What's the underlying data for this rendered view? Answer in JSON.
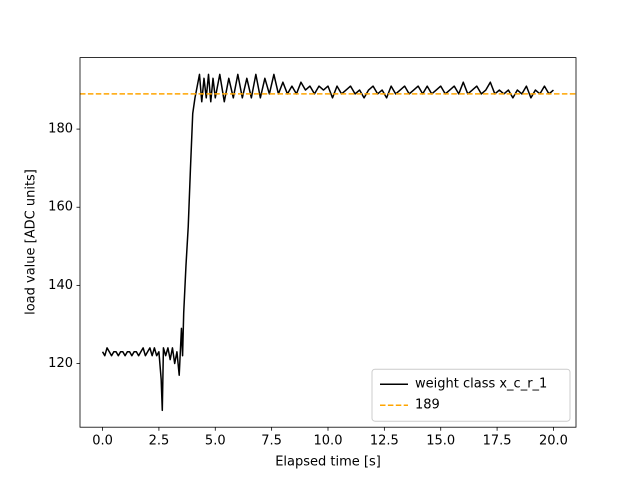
{
  "chart_data": {
    "type": "line",
    "xlabel": "Elapsed time [s]",
    "ylabel": "load value [ADC units]",
    "x": [
      0.0,
      0.1,
      0.2,
      0.3,
      0.4,
      0.5,
      0.6,
      0.7,
      0.8,
      0.9,
      1.0,
      1.1,
      1.2,
      1.3,
      1.4,
      1.5,
      1.6,
      1.7,
      1.8,
      1.9,
      2.0,
      2.1,
      2.2,
      2.3,
      2.4,
      2.5,
      2.6,
      2.65,
      2.7,
      2.8,
      2.9,
      3.0,
      3.1,
      3.2,
      3.3,
      3.4,
      3.5,
      3.55,
      3.6,
      3.7,
      3.8,
      3.9,
      4.0,
      4.1,
      4.2,
      4.3,
      4.4,
      4.5,
      4.6,
      4.7,
      4.8,
      4.9,
      5.0,
      5.2,
      5.4,
      5.6,
      5.8,
      6.0,
      6.2,
      6.4,
      6.6,
      6.8,
      7.0,
      7.2,
      7.4,
      7.6,
      7.8,
      8.0,
      8.2,
      8.4,
      8.6,
      8.8,
      9.0,
      9.2,
      9.4,
      9.6,
      9.8,
      10.0,
      10.2,
      10.4,
      10.6,
      10.8,
      11.0,
      11.2,
      11.4,
      11.6,
      11.8,
      12.0,
      12.2,
      12.4,
      12.6,
      12.8,
      13.0,
      13.2,
      13.4,
      13.6,
      13.8,
      14.0,
      14.2,
      14.4,
      14.6,
      14.8,
      15.0,
      15.2,
      15.4,
      15.6,
      15.8,
      16.0,
      16.2,
      16.4,
      16.6,
      16.8,
      17.0,
      17.2,
      17.4,
      17.6,
      17.8,
      18.0,
      18.2,
      18.4,
      18.6,
      18.8,
      19.0,
      19.2,
      19.4,
      19.6,
      19.8,
      20.0
    ],
    "series": [
      {
        "name": "weight class x_c_r_1",
        "color": "#000000",
        "values": [
          123,
          122,
          124,
          123,
          122,
          123,
          123,
          122,
          123,
          123,
          122,
          123,
          123,
          122,
          123,
          123,
          122,
          123,
          124,
          122,
          123,
          124,
          122,
          124,
          122,
          123,
          116,
          108,
          124,
          122,
          124,
          121,
          124,
          120,
          123,
          117,
          129,
          122,
          133,
          145,
          155,
          170,
          184,
          188,
          191,
          194,
          187,
          193,
          188,
          194,
          187,
          193,
          188,
          194,
          187,
          193,
          188,
          194,
          188,
          193,
          188,
          194,
          188,
          193,
          189,
          194,
          189,
          192,
          189,
          191,
          189,
          192,
          190,
          191,
          189,
          191,
          190,
          191,
          188,
          191,
          189,
          190,
          191,
          189,
          190,
          188,
          190,
          191,
          189,
          190,
          188,
          191,
          189,
          190,
          191,
          189,
          190,
          191,
          189,
          191,
          189,
          190,
          191,
          189,
          190,
          191,
          189,
          192,
          189,
          190,
          191,
          189,
          190,
          192,
          189,
          190,
          189,
          190,
          188,
          190,
          189,
          191,
          188,
          190,
          189,
          191,
          189,
          190
        ]
      }
    ],
    "hlines": [
      {
        "name": "189",
        "value": 189,
        "color": "#ffa500"
      }
    ],
    "xlim": [
      -1,
      21
    ],
    "ylim": [
      103.7,
      198.3
    ],
    "xticks": [
      {
        "value": 0,
        "label": "0.0"
      },
      2.5,
      {
        "value": 5,
        "label": "5.0"
      },
      7.5,
      {
        "value": 10,
        "label": "10.0"
      },
      12.5,
      {
        "value": 15,
        "label": "15.0"
      },
      17.5,
      {
        "value": 20,
        "label": "20.0"
      }
    ],
    "yticks": [
      120,
      140,
      160,
      180
    ],
    "legend": "lower right"
  }
}
